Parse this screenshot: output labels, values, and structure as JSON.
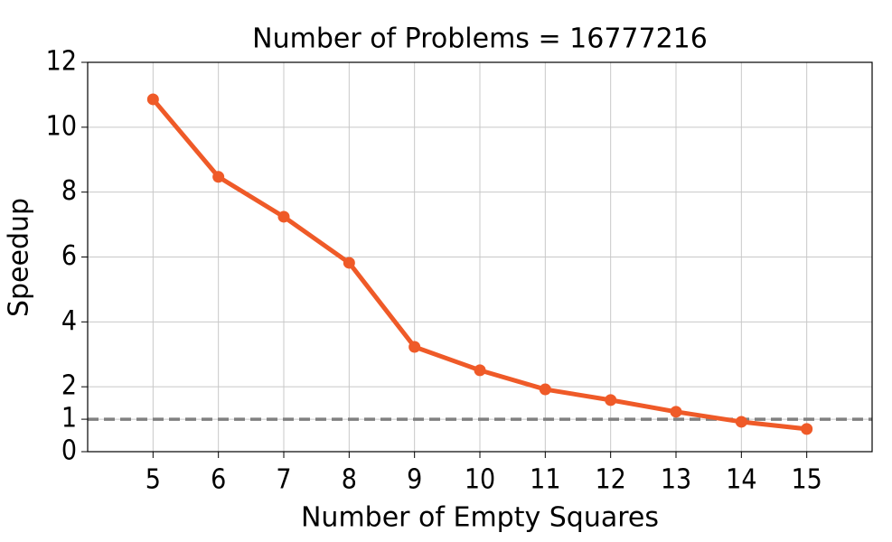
{
  "chart_data": {
    "type": "line",
    "title": "Number of Problems = 16777216",
    "x_label": "Number of Empty Squares",
    "y_label": "Speedup",
    "x": [
      5,
      6,
      7,
      8,
      9,
      10,
      11,
      12,
      13,
      14,
      15
    ],
    "series": [
      {
        "color": "#ef5a28",
        "values": [
          10.86,
          8.47,
          7.24,
          5.82,
          3.23,
          2.51,
          1.92,
          1.59,
          1.23,
          0.92,
          0.7
        ]
      }
    ],
    "hline": 1,
    "hline_color": "#808080",
    "xlim": [
      4,
      16
    ],
    "xticks": [
      5,
      6,
      7,
      8,
      9,
      10,
      11,
      12,
      13,
      14,
      15
    ],
    "ylim": [
      0,
      12
    ],
    "yticks": [
      0,
      1,
      2,
      4,
      6,
      8,
      10,
      12
    ],
    "grid": true
  }
}
